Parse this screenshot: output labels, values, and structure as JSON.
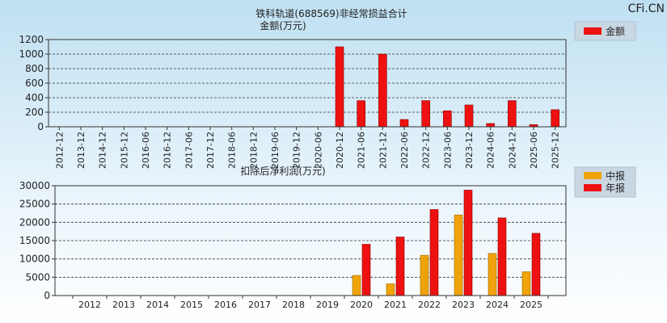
{
  "watermark": "CFi.CN",
  "chart_data": [
    {
      "type": "bar",
      "title": "铁科轨道(688569)非经常损益合计",
      "ylabel": "金额(万元)",
      "categories": [
        "2012-12",
        "2013-12",
        "2014-12",
        "2015-12",
        "2016-06",
        "2016-12",
        "2017-06",
        "2017-12",
        "2018-06",
        "2018-12",
        "2019-06",
        "2019-12",
        "2020-06",
        "2020-12",
        "2021-06",
        "2021-12",
        "2022-06",
        "2022-12",
        "2023-06",
        "2023-12",
        "2024-06",
        "2024-12",
        "2025-06",
        "2025-12"
      ],
      "series": [
        {
          "name": "金额",
          "color": "#ee1111",
          "values": [
            null,
            null,
            null,
            null,
            null,
            null,
            null,
            null,
            null,
            null,
            null,
            null,
            null,
            1100,
            360,
            1000,
            100,
            360,
            220,
            300,
            45,
            360,
            30,
            235
          ]
        }
      ],
      "ylim": [
        0,
        1200
      ],
      "yticks": [
        0,
        200,
        400,
        600,
        800,
        1000,
        1200
      ],
      "grid": true,
      "legend_position": "top-right"
    },
    {
      "type": "bar",
      "title": "扣除后净利润(万元)",
      "categories": [
        "2012",
        "2013",
        "2014",
        "2015",
        "2016",
        "2017",
        "2018",
        "2019",
        "2020",
        "2021",
        "2022",
        "2023",
        "2024",
        "2025"
      ],
      "series": [
        {
          "name": "中报",
          "color": "#f0a30a",
          "values": [
            null,
            null,
            null,
            null,
            null,
            null,
            null,
            null,
            5500,
            3200,
            11000,
            22000,
            11500,
            6500
          ]
        },
        {
          "name": "年报",
          "color": "#ee1111",
          "values": [
            null,
            null,
            null,
            null,
            null,
            null,
            null,
            null,
            14000,
            16000,
            23500,
            28800,
            21200,
            17000
          ]
        }
      ],
      "ylim": [
        0,
        30000
      ],
      "yticks": [
        0,
        5000,
        10000,
        15000,
        20000,
        25000,
        30000
      ],
      "grid": true,
      "legend_position": "top-right"
    }
  ]
}
